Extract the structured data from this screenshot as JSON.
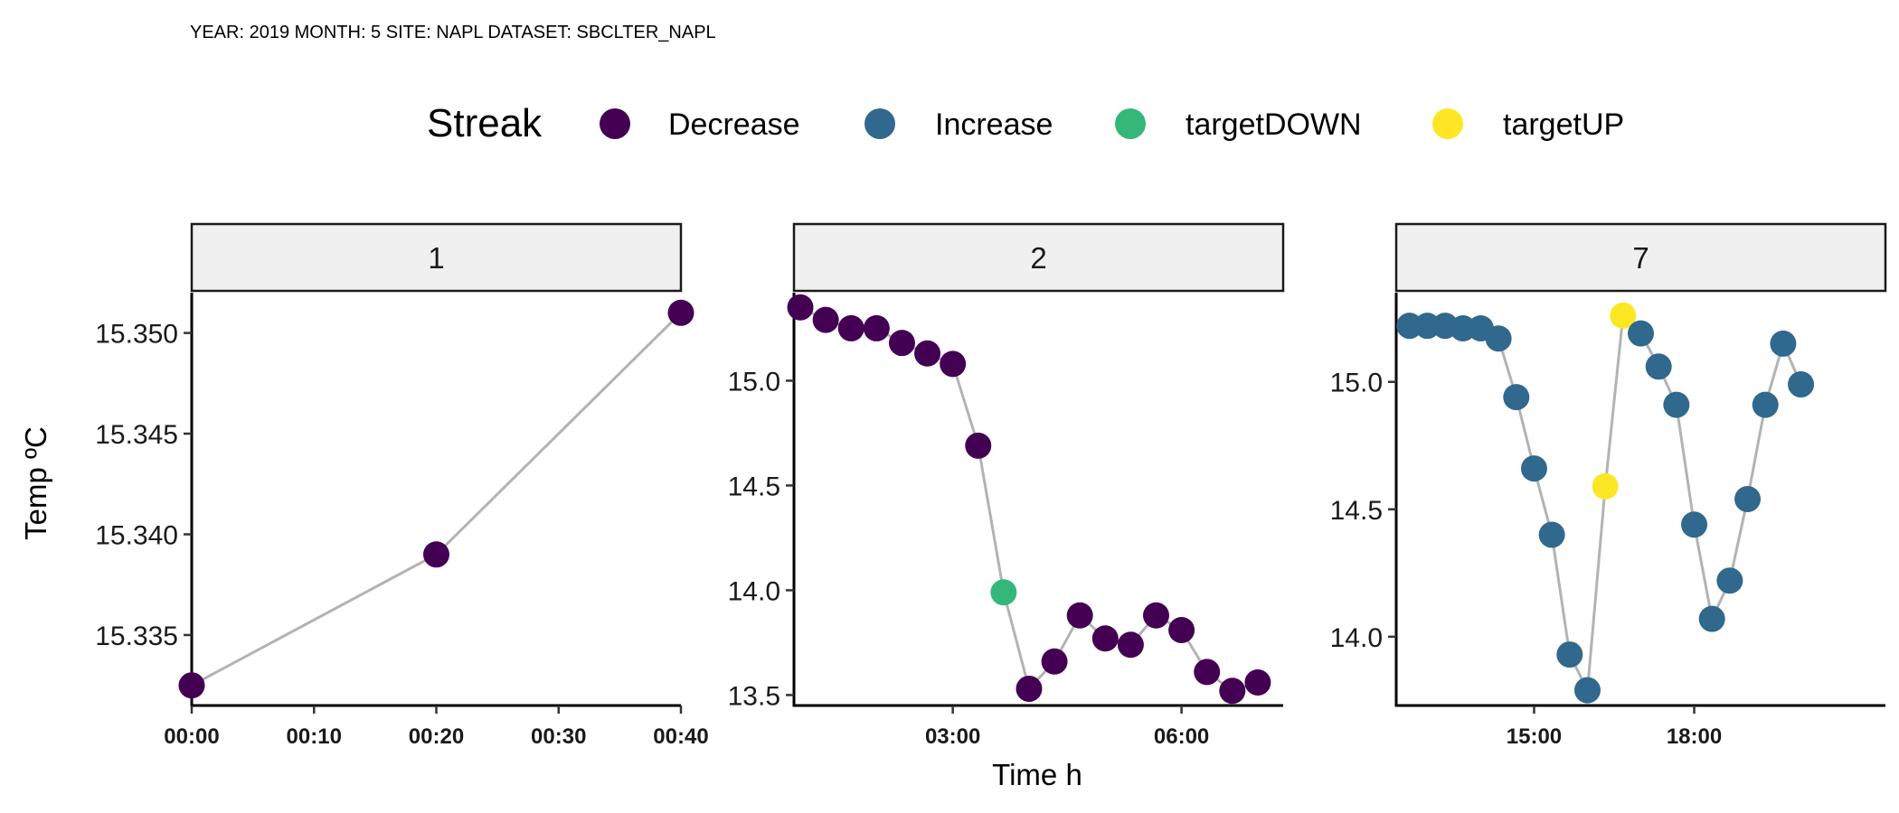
{
  "chart_data": {
    "type": "scatter",
    "subtitle": "YEAR: 2019 MONTH: 5 SITE:  NAPL DATASET:  SBCLTER_NAPL",
    "xlabel": "Time h",
    "ylabel": "Temp ºC",
    "grid": false,
    "legend": {
      "title": "Streak",
      "position": "top",
      "entries": [
        {
          "label": "Decrease",
          "color": "#440154"
        },
        {
          "label": "Increase",
          "color": "#31688E"
        },
        {
          "label": "targetDOWN",
          "color": "#35B779"
        },
        {
          "label": "targetUP",
          "color": "#FDE725"
        }
      ]
    },
    "line_color": "#b3b3b3",
    "panels": [
      {
        "strip": "1",
        "xlim": [
          "00:00",
          "00:40"
        ],
        "ylim": [
          15.3315,
          15.352
        ],
        "x_ticks": [
          "00:00",
          "00:10",
          "00:20",
          "00:30",
          "00:40"
        ],
        "y_ticks": [
          "15.335",
          "15.340",
          "15.345",
          "15.350"
        ],
        "points": [
          {
            "x": "00:00",
            "y": 15.3325,
            "streak": "Decrease"
          },
          {
            "x": "00:20",
            "y": 15.339,
            "streak": "Decrease"
          },
          {
            "x": "00:40",
            "y": 15.351,
            "streak": "Decrease"
          }
        ]
      },
      {
        "strip": "2",
        "xlim": [
          "00:55",
          "07:20"
        ],
        "ylim": [
          13.45,
          15.42
        ],
        "x_ticks": [
          "03:00",
          "06:00"
        ],
        "y_ticks": [
          "13.5",
          "14.0",
          "14.5",
          "15.0"
        ],
        "points": [
          {
            "x": "01:00",
            "y": 15.35,
            "streak": "Decrease"
          },
          {
            "x": "01:20",
            "y": 15.29,
            "streak": "Decrease"
          },
          {
            "x": "01:40",
            "y": 15.25,
            "streak": "Decrease"
          },
          {
            "x": "02:00",
            "y": 15.25,
            "streak": "Decrease"
          },
          {
            "x": "02:20",
            "y": 15.18,
            "streak": "Decrease"
          },
          {
            "x": "02:40",
            "y": 15.13,
            "streak": "Decrease"
          },
          {
            "x": "03:00",
            "y": 15.08,
            "streak": "Decrease"
          },
          {
            "x": "03:20",
            "y": 14.69,
            "streak": "Decrease"
          },
          {
            "x": "03:40",
            "y": 13.99,
            "streak": "targetDOWN"
          },
          {
            "x": "04:00",
            "y": 13.53,
            "streak": "Decrease"
          },
          {
            "x": "04:20",
            "y": 13.66,
            "streak": "Decrease"
          },
          {
            "x": "04:40",
            "y": 13.88,
            "streak": "Decrease"
          },
          {
            "x": "05:00",
            "y": 13.77,
            "streak": "Decrease"
          },
          {
            "x": "05:20",
            "y": 13.74,
            "streak": "Decrease"
          },
          {
            "x": "05:40",
            "y": 13.88,
            "streak": "Decrease"
          },
          {
            "x": "06:00",
            "y": 13.81,
            "streak": "Decrease"
          },
          {
            "x": "06:20",
            "y": 13.61,
            "streak": "Decrease"
          },
          {
            "x": "06:40",
            "y": 13.52,
            "streak": "Decrease"
          },
          {
            "x": "07:00",
            "y": 13.56,
            "streak": "Decrease"
          }
        ]
      },
      {
        "strip": "7",
        "xlim": [
          "12:25",
          "21:35"
        ],
        "ylim": [
          13.73,
          15.35
        ],
        "x_ticks": [
          "15:00",
          "18:00"
        ],
        "y_ticks": [
          "14.0",
          "14.5",
          "15.0"
        ],
        "points": [
          {
            "x": "12:40",
            "y": 15.22,
            "streak": "Increase"
          },
          {
            "x": "13:00",
            "y": 15.22,
            "streak": "Increase"
          },
          {
            "x": "13:20",
            "y": 15.22,
            "streak": "Increase"
          },
          {
            "x": "13:40",
            "y": 15.21,
            "streak": "Increase"
          },
          {
            "x": "14:00",
            "y": 15.21,
            "streak": "Increase"
          },
          {
            "x": "14:20",
            "y": 15.17,
            "streak": "Increase"
          },
          {
            "x": "14:40",
            "y": 14.94,
            "streak": "Increase"
          },
          {
            "x": "15:00",
            "y": 14.66,
            "streak": "Increase"
          },
          {
            "x": "15:20",
            "y": 14.4,
            "streak": "Increase"
          },
          {
            "x": "15:40",
            "y": 13.93,
            "streak": "Increase"
          },
          {
            "x": "16:00",
            "y": 13.79,
            "streak": "Increase"
          },
          {
            "x": "16:20",
            "y": 14.59,
            "streak": "targetUP"
          },
          {
            "x": "16:40",
            "y": 15.26,
            "streak": "targetUP"
          },
          {
            "x": "17:00",
            "y": 15.19,
            "streak": "Increase"
          },
          {
            "x": "17:20",
            "y": 15.06,
            "streak": "Increase"
          },
          {
            "x": "17:40",
            "y": 14.91,
            "streak": "Increase"
          },
          {
            "x": "18:00",
            "y": 14.44,
            "streak": "Increase"
          },
          {
            "x": "18:20",
            "y": 14.07,
            "streak": "Increase"
          },
          {
            "x": "18:40",
            "y": 14.22,
            "streak": "Increase"
          },
          {
            "x": "19:00",
            "y": 14.54,
            "streak": "Increase"
          },
          {
            "x": "19:20",
            "y": 14.91,
            "streak": "Increase"
          },
          {
            "x": "19:40",
            "y": 15.15,
            "streak": "Increase"
          },
          {
            "x": "20:00",
            "y": 14.99,
            "streak": "Increase"
          }
        ]
      }
    ]
  }
}
